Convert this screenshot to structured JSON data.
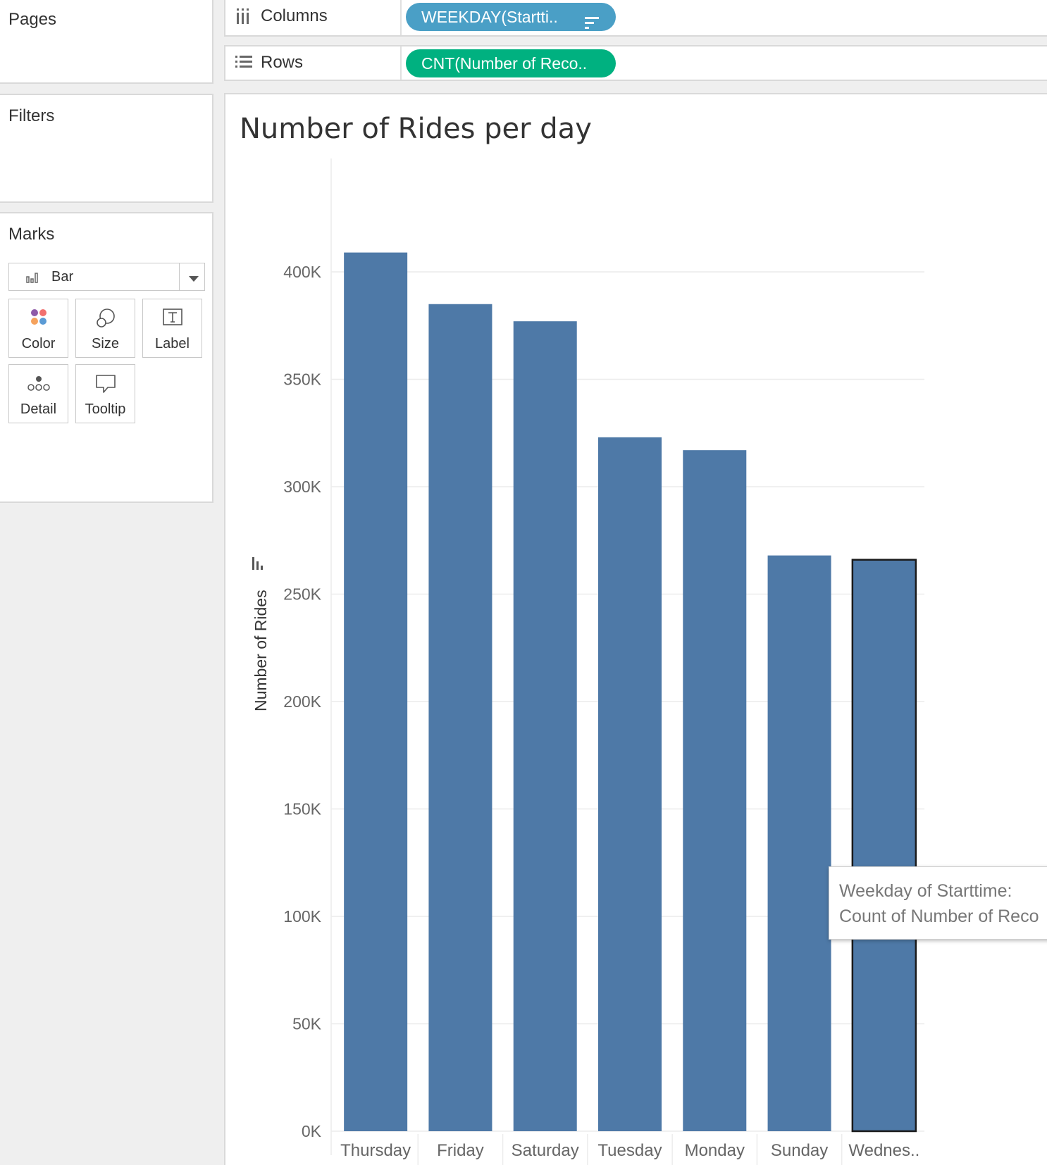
{
  "left_panel": {
    "pages_title": "Pages",
    "filters_title": "Filters",
    "marks": {
      "title": "Marks",
      "mark_type": "Bar",
      "mark_type_icon": "bar-chart-icon",
      "buttons": [
        {
          "label": "Color",
          "icon": "color-dots-icon"
        },
        {
          "label": "Size",
          "icon": "size-bubbles-icon"
        },
        {
          "label": "Label",
          "icon": "text-label-icon"
        },
        {
          "label": "Detail",
          "icon": "detail-dots-icon"
        },
        {
          "label": "Tooltip",
          "icon": "speech-bubble-icon"
        }
      ]
    }
  },
  "shelves": {
    "columns": {
      "label": "Columns",
      "pill": "WEEKDAY(Startti..",
      "icon": "columns-icon",
      "pill_icon": "sort-descending-icon"
    },
    "rows": {
      "label": "Rows",
      "pill": "CNT(Number of Reco..",
      "icon": "rows-icon"
    }
  },
  "tooltip": {
    "line1": "Weekday of Starttime:",
    "line2": "Count of Number of Reco"
  },
  "colors": {
    "bar": "#4e79a7",
    "columns_pill": "#4a9fc6",
    "rows_pill": "#00b180",
    "marks_color_dots": [
      "#8e5aa8",
      "#f1706f",
      "#f5a25d",
      "#5b9bd5"
    ]
  },
  "chart_data": {
    "type": "bar",
    "title": "Number of Rides per day",
    "ylabel": "Number of Rides",
    "xlabel": "",
    "categories": [
      "Thursday",
      "Friday",
      "Saturday",
      "Tuesday",
      "Monday",
      "Sunday",
      "Wednes.."
    ],
    "values": [
      409000,
      385000,
      377000,
      323000,
      317000,
      268000,
      266000
    ],
    "highlighted_category": "Wednes..",
    "ylim": [
      0,
      430000
    ],
    "yticks": [
      0,
      50000,
      100000,
      150000,
      200000,
      250000,
      300000,
      350000,
      400000
    ],
    "ytick_labels": [
      "0K",
      "50K",
      "100K",
      "150K",
      "200K",
      "250K",
      "300K",
      "350K",
      "400K"
    ],
    "grid": true,
    "legend": "none"
  }
}
